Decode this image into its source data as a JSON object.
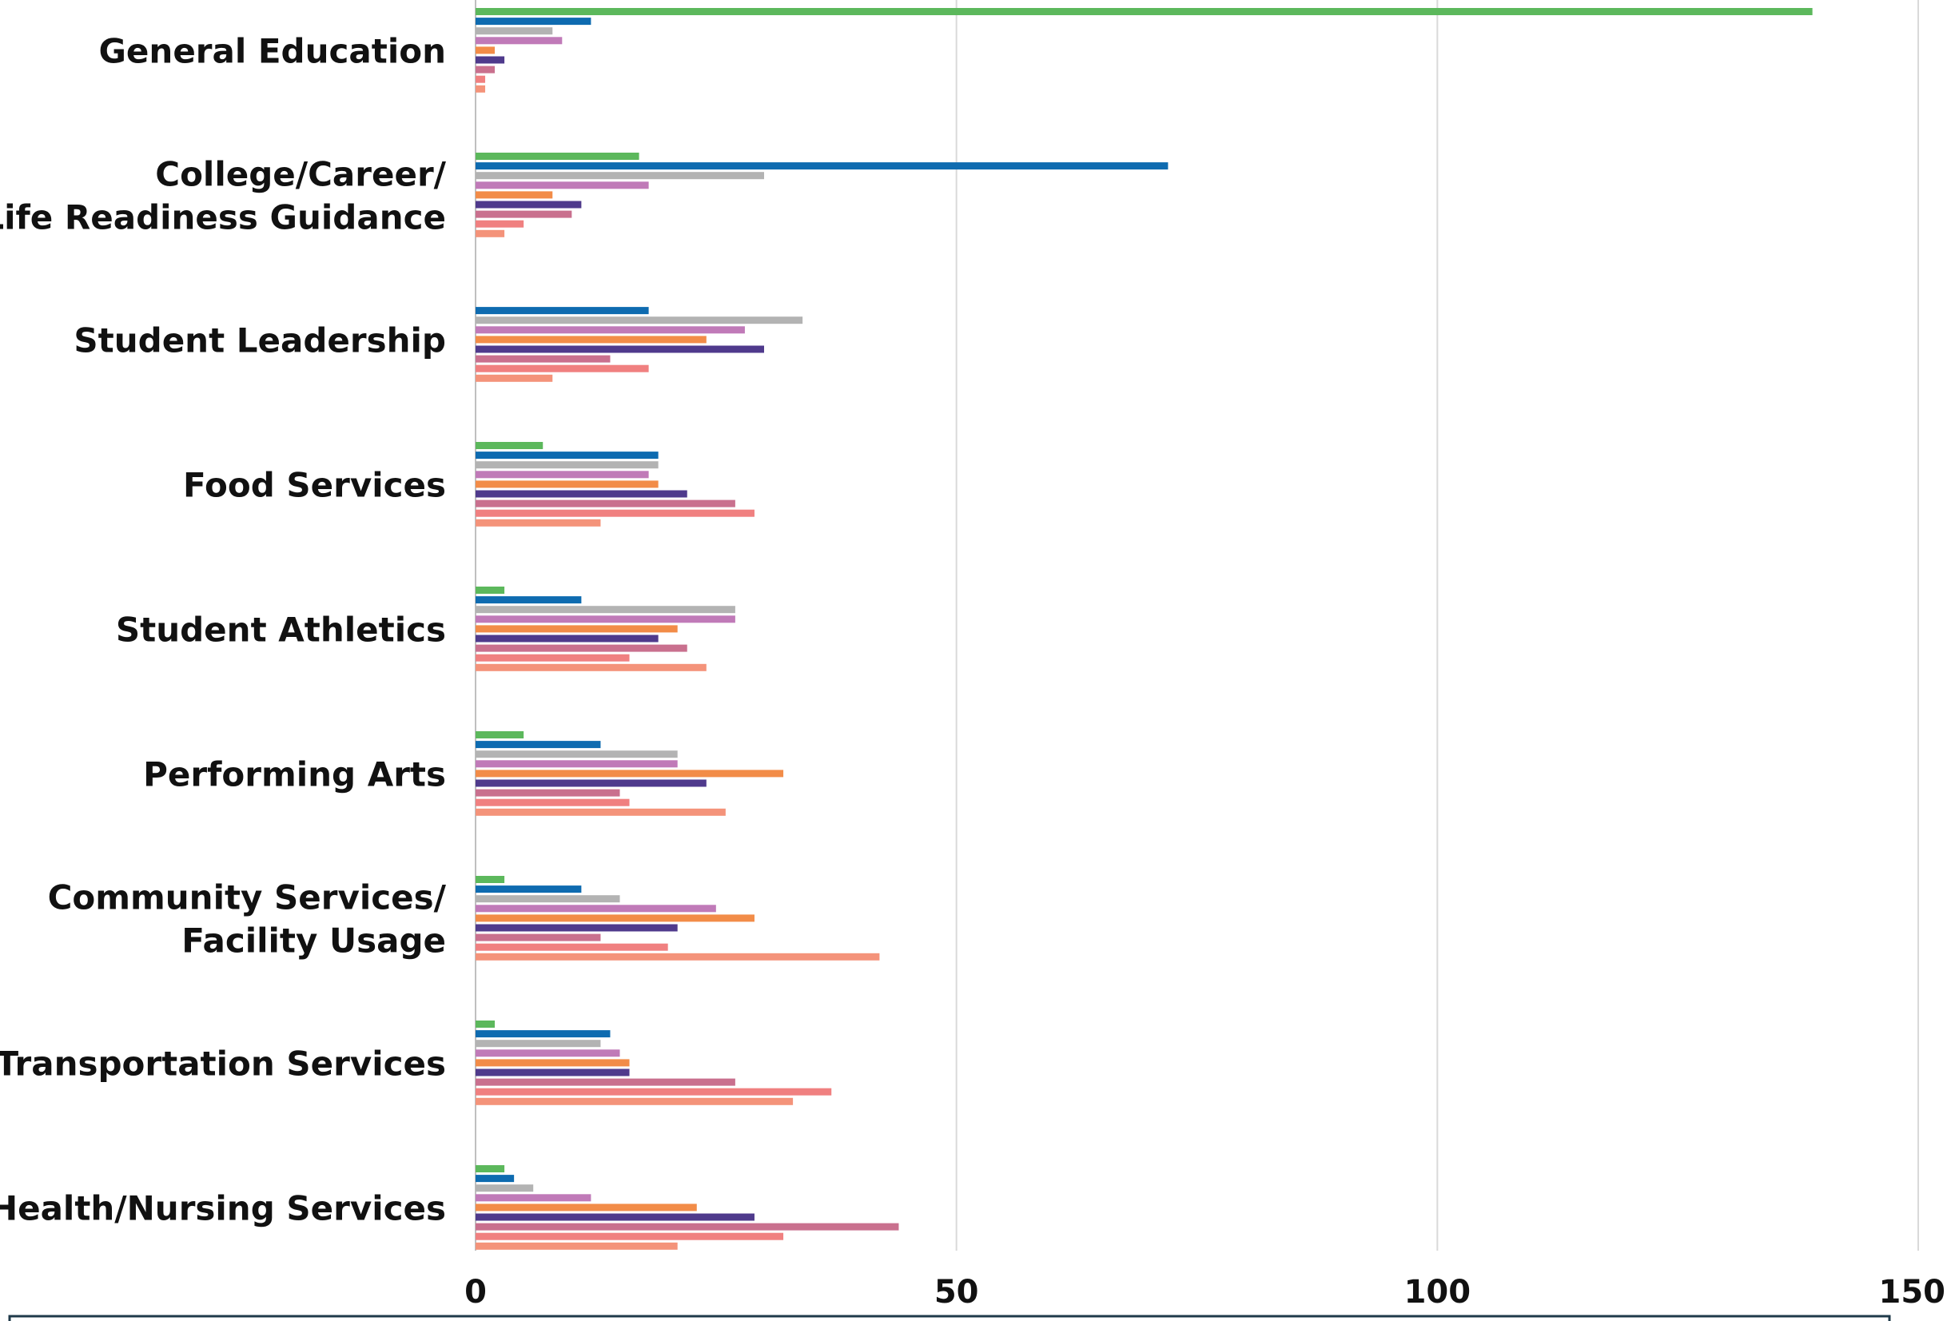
{
  "chart_data": {
    "type": "bar",
    "orientation": "horizontal",
    "title": "",
    "xlabel": "",
    "ylabel": "",
    "xlim": [
      0,
      150
    ],
    "xticks": [
      0,
      50,
      100,
      150
    ],
    "grid": true,
    "categories": [
      [
        "General Education"
      ],
      [
        "College/Career/",
        "Life Readiness Guidance"
      ],
      [
        "Student Leadership"
      ],
      [
        "Food Services"
      ],
      [
        "Student Athletics"
      ],
      [
        "Performing Arts"
      ],
      [
        "Community Services/",
        "Facility Usage"
      ],
      [
        "Transportation Services"
      ],
      [
        "Health/Nursing Services"
      ]
    ],
    "series": [
      {
        "color": "#5cb85c",
        "values": [
          139,
          17,
          0,
          7,
          3,
          5,
          3,
          2,
          3
        ]
      },
      {
        "color": "#0e6bb0",
        "values": [
          12,
          72,
          18,
          19,
          11,
          13,
          11,
          14,
          4
        ]
      },
      {
        "color": "#b3b3b3",
        "values": [
          8,
          30,
          34,
          19,
          27,
          21,
          15,
          13,
          6
        ]
      },
      {
        "color": "#c07ab8",
        "values": [
          9,
          18,
          28,
          18,
          27,
          21,
          25,
          15,
          12
        ]
      },
      {
        "color": "#f28c48",
        "values": [
          2,
          8,
          24,
          19,
          21,
          32,
          29,
          16,
          23
        ]
      },
      {
        "color": "#4f3a8c",
        "values": [
          3,
          11,
          30,
          22,
          19,
          24,
          21,
          16,
          29
        ]
      },
      {
        "color": "#c9708e",
        "values": [
          2,
          10,
          14,
          27,
          22,
          15,
          13,
          27,
          44
        ]
      },
      {
        "color": "#f08080",
        "values": [
          1,
          5,
          18,
          29,
          16,
          16,
          20,
          37,
          32
        ]
      },
      {
        "color": "#f4937a",
        "values": [
          1,
          3,
          8,
          13,
          24,
          26,
          42,
          33,
          21
        ]
      }
    ]
  }
}
